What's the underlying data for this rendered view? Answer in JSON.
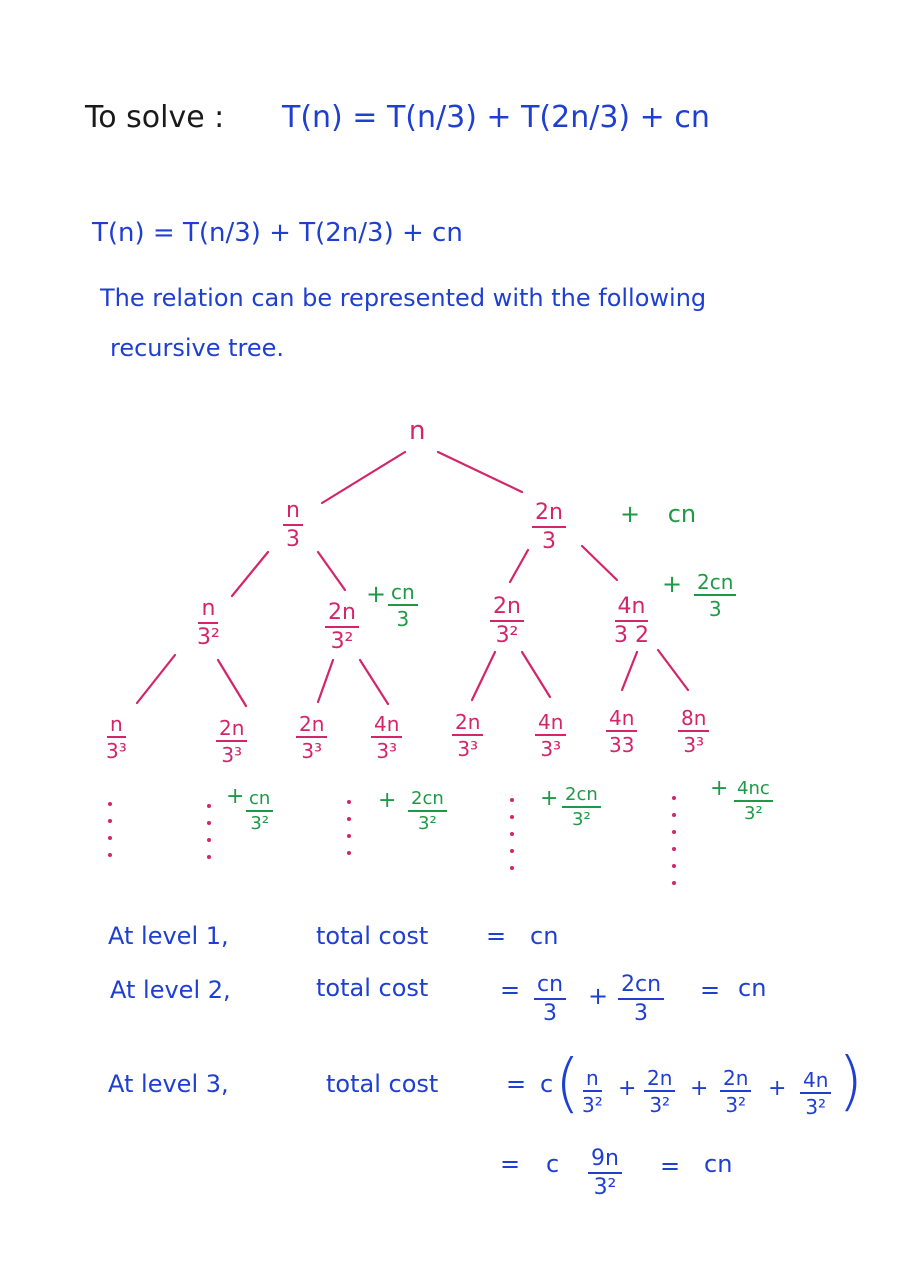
{
  "header": {
    "to_solve": "To solve :",
    "equation": "T(n) = T(n/3) + T(2n/3) + cn"
  },
  "intro": {
    "equation": "T(n) = T(n/3) + T(2n/3) + cn",
    "line1": "The relation can be represented with the following",
    "line2": "recursive tree."
  },
  "tree": {
    "root": "n",
    "l1_left": {
      "num": "n",
      "den": "3"
    },
    "l1_right": {
      "num": "2n",
      "den": "3"
    },
    "l1_cost": "+ cn",
    "l2": [
      {
        "num": "n",
        "den": "3²"
      },
      {
        "num": "2n",
        "den": "3²"
      },
      {
        "num": "2n",
        "den": "3²"
      },
      {
        "num": "4n",
        "den": "3 2"
      }
    ],
    "l2_cost_left": {
      "prefix": "+",
      "num": "cn",
      "den": "3"
    },
    "l2_cost_right": {
      "prefix": "+",
      "num": "2cn",
      "den": "3"
    },
    "l3": [
      {
        "num": "n",
        "den": "3³"
      },
      {
        "num": "2n",
        "den": "3³"
      },
      {
        "num": "2n",
        "den": "3³"
      },
      {
        "num": "4n",
        "den": "3³"
      },
      {
        "num": "2n",
        "den": "3³"
      },
      {
        "num": "4n",
        "den": "3³"
      },
      {
        "num": "4n",
        "den": "33"
      },
      {
        "num": "8n",
        "den": "3³"
      }
    ],
    "l3_costs": [
      {
        "prefix": "+",
        "num": "cn",
        "den": "3²"
      },
      {
        "prefix": "+",
        "num": "2cn",
        "den": "3²"
      },
      {
        "prefix": "+",
        "num": "2cn",
        "den": "3²"
      },
      {
        "prefix": "+",
        "num": "4nc",
        "den": "3²"
      }
    ]
  },
  "levels": {
    "l1": {
      "label": "At level 1,",
      "text": "total cost",
      "eq": "=",
      "value": "cn"
    },
    "l2": {
      "label": "At level 2,",
      "text": "total cost",
      "eq": "=",
      "f1": {
        "num": "cn",
        "den": "3"
      },
      "plus": "+",
      "f2": {
        "num": "2cn",
        "den": "3"
      },
      "eq2": "=",
      "value": "cn"
    },
    "l3": {
      "label": "At level 3,",
      "text": "total cost",
      "eq": "=",
      "c": "c",
      "fracs": [
        {
          "num": "n",
          "den": "3²"
        },
        {
          "num": "2n",
          "den": "3²"
        },
        {
          "num": "2n",
          "den": "3²"
        },
        {
          "num": "4n",
          "den": "3²"
        }
      ],
      "plus": "+",
      "line2_eq": "=",
      "line2_c": "c",
      "line2_frac": {
        "num": "9n",
        "den": "3²"
      },
      "line2_eq2": "=",
      "line2_value": "cn"
    }
  },
  "colors": {
    "black": "#1a1a1a",
    "blue": "#1f3fd1",
    "magenta": "#d4246a",
    "green": "#1e9a46"
  }
}
